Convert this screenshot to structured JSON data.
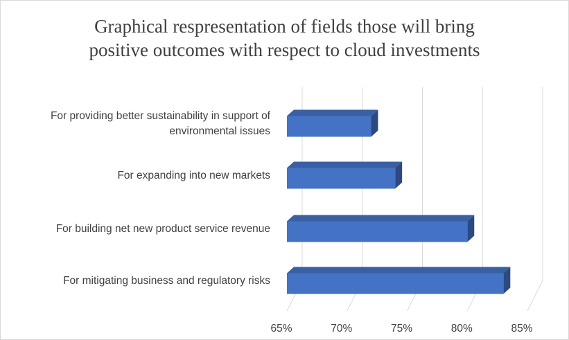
{
  "chart_data": {
    "type": "bar",
    "orientation": "horizontal",
    "style": "3d",
    "title": "Graphical respresentation of fields those will bring positive outcomes with respect to cloud investments",
    "title_lines": [
      "Graphical respresentation of fields those will bring",
      "positive outcomes with respect to cloud investments"
    ],
    "categories": [
      [
        "For providing better sustainability in support of",
        "environmental issues"
      ],
      [
        "For expanding into new markets"
      ],
      [
        "For building net new product service revenue"
      ],
      [
        "For mitigating business and regulatory risks"
      ]
    ],
    "values": [
      72,
      74,
      80,
      83
    ],
    "xlim": [
      65,
      85
    ],
    "ticks": [
      65,
      70,
      75,
      80,
      85
    ],
    "tick_labels": [
      "65%",
      "70%",
      "75%",
      "80%",
      "85%"
    ],
    "xlabel": "",
    "ylabel": "",
    "grid": true,
    "legend": "none",
    "colors": {
      "bar_front": "#4472c4",
      "bar_top": "#3a5fa3",
      "bar_side": "#2c4a80",
      "grid": "#d9d9d9",
      "text": "#404040"
    }
  }
}
